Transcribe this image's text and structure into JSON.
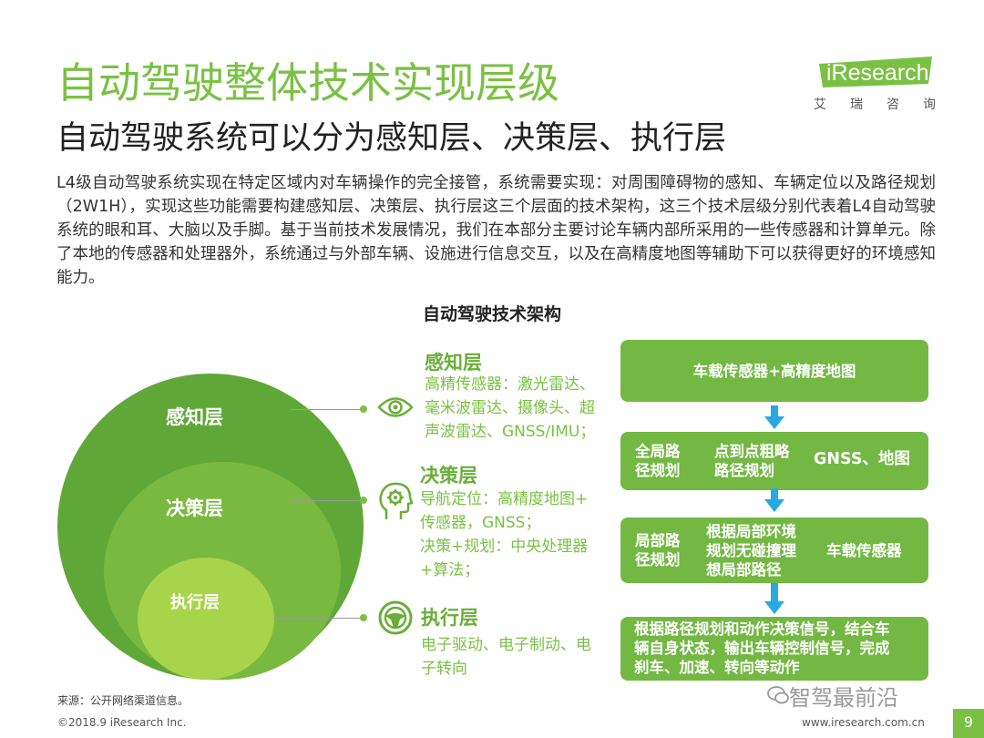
{
  "header": {
    "title": "自动驾驶整体技术实现层级",
    "subtitle": "自动驾驶系统可以分为感知层、决策层、执行层"
  },
  "logo": {
    "name": "iResearch",
    "sub": [
      "艾",
      "瑞",
      "咨",
      "询"
    ]
  },
  "intro": "L4级自动驾驶系统实现在特定区域内对车辆操作的完全接管，系统需要实现：对周围障碍物的感知、车辆定位以及路径规划（2W1H），实现这些功能需要构建感知层、决策层、执行层这三个层面的技术架构，这三个技术层级分别代表着L4自动驾驶系统的眼和耳、大脑以及手脚。基于当前技术发展情况，我们在本部分主要讨论车辆内部所采用的一些传感器和计算单元。除了本地的传感器和处理器外，系统通过与外部车辆、设施进行信息交互，以及在高精度地图等辅助下可以获得更好的环境感知能力。",
  "diagram": {
    "title": "自动驾驶技术架构",
    "circles": {
      "perception": "感知层",
      "decision": "决策层",
      "execution": "执行层"
    },
    "layers": [
      {
        "head": "感知层",
        "icon": "eye-icon",
        "lines": [
          "高精传感器：激光雷达、",
          "毫米波雷达、摄像头、超",
          "声波雷达、GNSS/IMU；"
        ]
      },
      {
        "head": "决策层",
        "icon": "brain-gear-icon",
        "lines": [
          "导航定位：高精度地图+",
          "传感器，GNSS；",
          "决策+规划：中央处理器",
          "+算法；"
        ]
      },
      {
        "head": "执行层",
        "icon": "steering-wheel-icon",
        "lines": [
          "电子驱动、电子制动、电",
          "子转向"
        ]
      }
    ],
    "flow": {
      "box1": "车载传感器+高精度地图",
      "box2": {
        "a": [
          "全局路",
          "径规划"
        ],
        "b": [
          "点到点粗略",
          "路径规划"
        ],
        "c": "GNSS、地图"
      },
      "box3": {
        "a": [
          "局部路",
          "径规划"
        ],
        "b": [
          "根据局部环境",
          "规划无碰撞理",
          "想局部路径"
        ],
        "c": "车载传感器"
      },
      "box4": [
        "根据路径规划和动作决策信号，结合车",
        "辆自身状态，输出车辆控制信号，完成",
        "刹车、加速、转向等动作"
      ]
    },
    "colors": {
      "primary_green": "#7ac143",
      "outer_circle": "#5fa838",
      "middle_circle": "#7ab93f",
      "inner_circle": "#a8d44b",
      "flow_box": "#73b843",
      "arrow": "#29a9e1"
    }
  },
  "footer": {
    "source": "来源：公开网络渠道信息。",
    "copyright": "©2018.9 iResearch Inc.",
    "website": "www.iresearch.com.cn",
    "page": "9",
    "watermark": "智驾最前沿"
  }
}
